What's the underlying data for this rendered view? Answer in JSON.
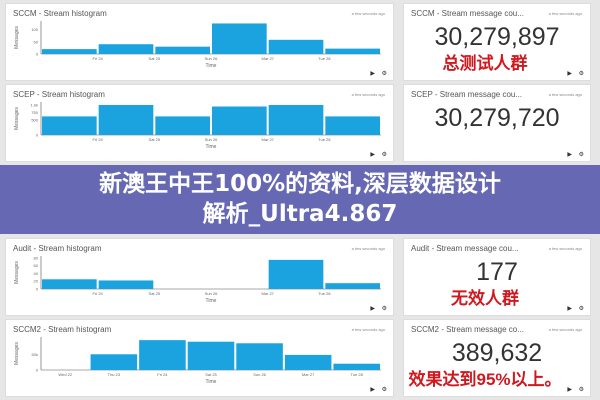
{
  "histograms": [
    {
      "title": "SCCM - Stream histogram",
      "updated": "a few seconds ago",
      "ylabel": "Messages",
      "xlabel": "Time",
      "yticks": [
        "100",
        "50",
        "0"
      ],
      "ymax": 135,
      "tickvals": [
        100,
        50,
        0
      ],
      "xticks": [
        "Fri 24",
        "Sat 25",
        "Sun 26",
        "Mar 27",
        "Tue 28"
      ],
      "values": [
        20,
        40,
        30,
        125,
        58,
        22
      ]
    },
    {
      "title": "SCEP - Stream histogram",
      "updated": "a few seconds ago",
      "ylabel": "Messages",
      "xlabel": "Time",
      "yticks": [
        "1.0k",
        "750",
        "500",
        "0"
      ],
      "ymax": 1100,
      "tickvals": [
        1000,
        750,
        500,
        0
      ],
      "xticks": [
        "Fri 24",
        "Sat 25",
        "Sun 26",
        "Mar 27",
        "Tue 28"
      ],
      "values": [
        620,
        1000,
        620,
        950,
        1000,
        620
      ]
    },
    {
      "title": "Audit - Stream histogram",
      "updated": "a few seconds ago",
      "ylabel": "Messages",
      "xlabel": "Time",
      "yticks": [
        "80",
        "60",
        "40",
        "20",
        "0"
      ],
      "ymax": 85,
      "tickvals": [
        80,
        60,
        40,
        20,
        0
      ],
      "xticks": [
        "Fri 24",
        "Sat 25",
        "Sun 26",
        "Mar 27",
        "Tue 28"
      ],
      "values": [
        25,
        22,
        0,
        0,
        75,
        15
      ]
    },
    {
      "title": "SCCM2 - Stream histogram",
      "updated": "a few seconds ago",
      "ylabel": "Messages",
      "xlabel": "Time",
      "yticks": [
        "50k",
        "0"
      ],
      "ymax": 105,
      "tickvals": [
        50,
        0
      ],
      "xticks": [
        "Wed 22",
        "Thu 23",
        "Fri 24",
        "Sat 25",
        "Sun 26",
        "Mar 27",
        "Tue 28"
      ],
      "values": [
        0,
        50,
        95,
        90,
        85,
        48,
        20
      ]
    }
  ],
  "counters": [
    {
      "title": "SCCM - Stream message cou...",
      "updated": "a few seconds ago",
      "value": "30,279,897",
      "caption": "总测试人群"
    },
    {
      "title": "SCEP - Stream message cou...",
      "updated": "a few seconds ago",
      "value": "30,279,720",
      "caption": ""
    },
    {
      "title": "Audit - Stream message cou...",
      "updated": "a few seconds ago",
      "value": "177",
      "caption": "无效人群"
    },
    {
      "title": "SCCM2 - Stream message co...",
      "updated": "a few seconds ago",
      "value": "389,632",
      "caption": "效果达到95%以上。"
    }
  ],
  "banner": {
    "line1": "新澳王中王100%的资料,深层数据设计",
    "line2": "解析_Ultra4.867"
  },
  "colors": {
    "bar": "#1aa3df",
    "caption": "#d0181f",
    "banner": "#5456ac"
  }
}
